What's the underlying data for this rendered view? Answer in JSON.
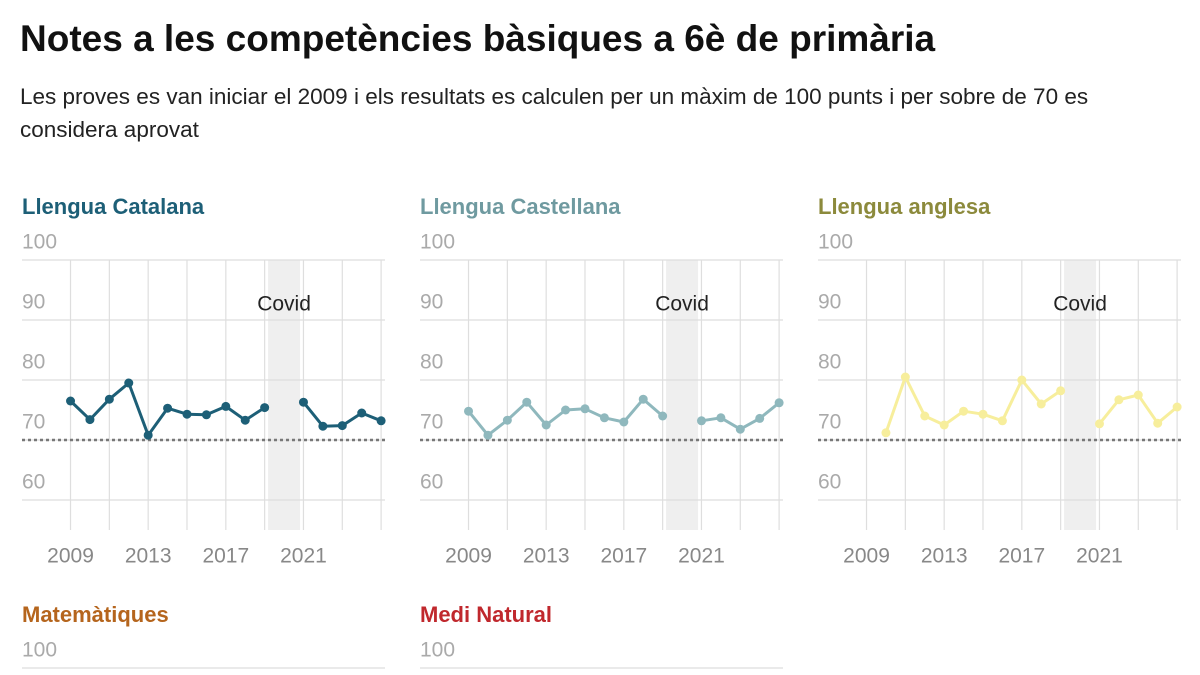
{
  "header": {
    "title": "Notes a les competències bàsiques a 6è de primària",
    "subtitle": "Les proves es van iniciar el 2009 i els resultats es calculen per un màxim de 100 punts i per sobre de 70 es considera aprovat"
  },
  "chart_data": [
    {
      "type": "line",
      "title": "Llengua Catalana",
      "title_color": "#1d5f77",
      "color": "#1d5f77",
      "x": [
        2009,
        2010,
        2011,
        2012,
        2013,
        2014,
        2015,
        2016,
        2017,
        2018,
        2019,
        2020,
        2021,
        2022,
        2023,
        2024,
        2025
      ],
      "values": [
        76.5,
        73.4,
        76.8,
        79.5,
        70.8,
        75.3,
        74.3,
        74.2,
        75.6,
        73.3,
        75.4,
        null,
        76.3,
        72.3,
        72.4,
        74.5,
        73.2
      ],
      "xlim": [
        2006.5,
        2025.2
      ],
      "xticks": [
        2009,
        2013,
        2017,
        2021
      ],
      "xgrid": [
        2009,
        2011,
        2013,
        2015,
        2017,
        2019,
        2021,
        2023,
        2025
      ],
      "ylim": [
        55,
        100
      ],
      "yticks": [
        100,
        90,
        80,
        70,
        60
      ],
      "reference_line": 70,
      "annotation": {
        "text": "Covid",
        "x": 2020
      }
    },
    {
      "type": "line",
      "title": "Llengua Castellana",
      "title_color": "#6f9aa0",
      "color": "#8fb8bd",
      "x": [
        2009,
        2010,
        2011,
        2012,
        2013,
        2014,
        2015,
        2016,
        2017,
        2018,
        2019,
        2020,
        2021,
        2022,
        2023,
        2024,
        2025
      ],
      "values": [
        74.8,
        70.8,
        73.3,
        76.3,
        72.5,
        75.0,
        75.2,
        73.7,
        73.0,
        76.8,
        74.0,
        null,
        73.2,
        73.7,
        71.8,
        73.6,
        76.2
      ],
      "xlim": [
        2006.5,
        2025.2
      ],
      "xticks": [
        2009,
        2013,
        2017,
        2021
      ],
      "xgrid": [
        2009,
        2011,
        2013,
        2015,
        2017,
        2019,
        2021,
        2023,
        2025
      ],
      "ylim": [
        55,
        100
      ],
      "yticks": [
        100,
        90,
        80,
        70,
        60
      ],
      "reference_line": 70,
      "annotation": {
        "text": "Covid",
        "x": 2020
      }
    },
    {
      "type": "line",
      "title": "Llengua anglesa",
      "title_color": "#8c8a3c",
      "color": "#f7ee9c",
      "x": [
        2010,
        2011,
        2012,
        2013,
        2014,
        2015,
        2016,
        2017,
        2018,
        2019,
        2020,
        2021,
        2022,
        2023,
        2024,
        2025
      ],
      "values": [
        71.2,
        80.5,
        74.0,
        72.5,
        74.8,
        74.3,
        73.2,
        80.0,
        76.0,
        78.2,
        null,
        72.7,
        76.7,
        77.5,
        72.8,
        75.5
      ],
      "xlim": [
        2006.5,
        2025.2
      ],
      "xticks": [
        2009,
        2013,
        2017,
        2021
      ],
      "xgrid": [
        2009,
        2011,
        2013,
        2015,
        2017,
        2019,
        2021,
        2023,
        2025
      ],
      "ylim": [
        55,
        100
      ],
      "yticks": [
        100,
        90,
        80,
        70,
        60
      ],
      "reference_line": 70,
      "annotation": {
        "text": "Covid",
        "x": 2020
      }
    },
    {
      "type": "line",
      "title": "Matemàtiques",
      "title_color": "#b5651d",
      "ylim": [
        55,
        100
      ],
      "yticks": [
        100
      ]
    },
    {
      "type": "line",
      "title": "Medi Natural",
      "title_color": "#c0282d",
      "ylim": [
        55,
        100
      ],
      "yticks": [
        100
      ]
    }
  ]
}
